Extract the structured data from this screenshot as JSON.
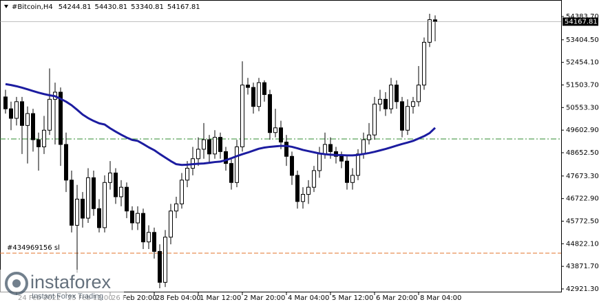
{
  "chart_data": {
    "type": "candlestick",
    "title": "#Bitcoin,H4",
    "up_color": "#ffffff",
    "down_color": "#000000",
    "line_color": "#000000",
    "categories": [
      null,
      null,
      "24 Feb 2022",
      null,
      null,
      null,
      null,
      null,
      null,
      null,
      null,
      "25 Feb 12:00",
      null,
      null,
      null,
      null,
      null,
      null,
      null,
      "26 Feb 20:00",
      null,
      null,
      null,
      null,
      null,
      null,
      null,
      "28 Feb 04:00",
      null,
      null,
      null,
      null,
      null,
      null,
      null,
      "1 Mar 12:00",
      null,
      null,
      null,
      null,
      null,
      null,
      null,
      "2 Mar 20:00",
      null,
      null,
      null,
      null,
      null,
      null,
      null,
      "4 Mar 04:00",
      null,
      null,
      null,
      null,
      null,
      null,
      null,
      "5 Mar 12:00",
      null,
      null,
      null,
      null,
      null,
      null,
      null,
      "6 Mar 20:00",
      null,
      null,
      null,
      null,
      null,
      null,
      null,
      "8 Mar 04:00",
      null,
      null,
      null
    ],
    "open": [
      51000,
      50500,
      50100,
      50800,
      49800,
      50300,
      49200,
      48900,
      49600,
      50900,
      51200,
      49000,
      47500,
      45600,
      46700,
      45900,
      47600,
      46300,
      45500,
      47400,
      47800,
      46800,
      47200,
      46200,
      45700,
      46100,
      44900,
      45300,
      44500,
      43200,
      45100,
      46200,
      46500,
      47500,
      48000,
      48400,
      48800,
      49200,
      48600,
      49300,
      48700,
      48200,
      47400,
      48900,
      51500,
      51400,
      50600,
      51600,
      51100,
      49500,
      49700,
      49100,
      48500,
      47700,
      46600,
      46900,
      47200,
      47900,
      48600,
      49000,
      48700,
      48500,
      48300,
      47400,
      47700,
      48600,
      49200,
      49400,
      50700,
      50900,
      50500,
      51500,
      50800,
      49600,
      50600,
      50800,
      51500,
      53300,
      54244.81
    ],
    "high": [
      51300,
      50800,
      51000,
      51000,
      50600,
      50500,
      49500,
      50200,
      52200,
      51600,
      51400,
      49500,
      47900,
      47300,
      47000,
      48000,
      47900,
      46700,
      47700,
      48300,
      48000,
      47500,
      47400,
      46400,
      46400,
      46300,
      45600,
      45500,
      44800,
      45400,
      46500,
      46800,
      47800,
      48300,
      48900,
      49300,
      49900,
      49400,
      49600,
      49500,
      48900,
      48400,
      49200,
      52500,
      51800,
      51600,
      51800,
      51700,
      51300,
      50500,
      50000,
      49400,
      48700,
      47900,
      47200,
      47500,
      48100,
      48900,
      49500,
      49300,
      48900,
      48700,
      48500,
      48000,
      48800,
      49500,
      49900,
      51000,
      51300,
      51200,
      51800,
      51700,
      51000,
      50900,
      51000,
      52300,
      53500,
      54500,
      54430.81
    ],
    "low": [
      50300,
      49600,
      49800,
      48600,
      48200,
      48700,
      47900,
      48600,
      49400,
      49000,
      48100,
      47000,
      45300,
      43600,
      45500,
      45700,
      46000,
      45300,
      45300,
      47100,
      46500,
      46400,
      45900,
      45400,
      45400,
      44600,
      44600,
      44200,
      42950,
      43000,
      44800,
      45900,
      46300,
      47200,
      47700,
      48100,
      48400,
      48200,
      48400,
      48400,
      47900,
      47100,
      47200,
      48700,
      51100,
      50300,
      50400,
      50800,
      49200,
      49300,
      48800,
      48100,
      47300,
      46300,
      46300,
      46500,
      47000,
      47600,
      48400,
      48400,
      48200,
      48000,
      47100,
      47100,
      47500,
      48400,
      49000,
      49200,
      50400,
      50200,
      50300,
      50500,
      49300,
      49400,
      50300,
      50600,
      51300,
      53100,
      53340.81
    ],
    "close": [
      50500,
      50100,
      50800,
      49800,
      50300,
      49200,
      48900,
      49600,
      50900,
      51200,
      49000,
      47500,
      45600,
      46700,
      45900,
      47600,
      46300,
      45500,
      47400,
      47800,
      46800,
      47200,
      46200,
      45700,
      46100,
      44900,
      45300,
      44500,
      43200,
      45100,
      46200,
      46500,
      47500,
      48000,
      48400,
      48800,
      49200,
      48600,
      49300,
      48700,
      48200,
      47400,
      48900,
      51500,
      51400,
      50600,
      51600,
      51100,
      49500,
      49700,
      49100,
      48500,
      47700,
      46600,
      46900,
      47200,
      47900,
      48600,
      49000,
      48700,
      48500,
      48300,
      47400,
      47700,
      48600,
      49200,
      49400,
      50700,
      50900,
      50500,
      51500,
      50800,
      49600,
      50600,
      50800,
      51500,
      53300,
      54250,
      54167.81
    ],
    "ma": {
      "color": "#1c1ca0",
      "values": [
        51540,
        51500,
        51450,
        51390,
        51320,
        51250,
        51180,
        51120,
        51070,
        51030,
        50920,
        50800,
        50650,
        50460,
        50260,
        50110,
        49990,
        49890,
        49840,
        49680,
        49540,
        49410,
        49290,
        49190,
        49150,
        49020,
        48880,
        48760,
        48600,
        48450,
        48300,
        48170,
        48140,
        48150,
        48170,
        48190,
        48200,
        48230,
        48260,
        48280,
        48340,
        48420,
        48510,
        48590,
        48660,
        48740,
        48820,
        48870,
        48900,
        48920,
        48940,
        48940,
        48900,
        48840,
        48770,
        48720,
        48670,
        48620,
        48590,
        48570,
        48560,
        48550,
        48540,
        48540,
        48560,
        48600,
        48640,
        48690,
        48750,
        48810,
        48880,
        48950,
        49020,
        49080,
        49150,
        49250,
        49350,
        49480,
        49700
      ]
    },
    "levels": [
      {
        "value": 49232,
        "color": "#2e8b2e"
      },
      {
        "value": 44428,
        "color": "#e0702a",
        "label": "#434969156 sl"
      }
    ],
    "ylim": [
      42776.6,
      55078.3
    ],
    "yticks": [
      {
        "value": 54383.7,
        "label": "54383.70"
      },
      {
        "value": 53404.5,
        "label": "53404.50"
      },
      {
        "value": 52454.1,
        "label": "52454.10"
      },
      {
        "value": 51503.7,
        "label": "51503.70"
      },
      {
        "value": 50553.3,
        "label": "50553.30"
      },
      {
        "value": 49602.9,
        "label": "49602.90"
      },
      {
        "value": 48652.5,
        "label": "48652.50"
      },
      {
        "value": 47673.3,
        "label": "47673.30"
      },
      {
        "value": 46722.9,
        "label": "46722.90"
      },
      {
        "value": 45772.5,
        "label": "45772.50"
      },
      {
        "value": 44822.1,
        "label": "44822.10"
      },
      {
        "value": 43871.7,
        "label": "43871.70"
      },
      {
        "value": 42921.3,
        "label": "42921.30"
      }
    ],
    "watermark": {
      "brand": "instaforex",
      "tagline": "Instant Forex Trading"
    }
  }
}
